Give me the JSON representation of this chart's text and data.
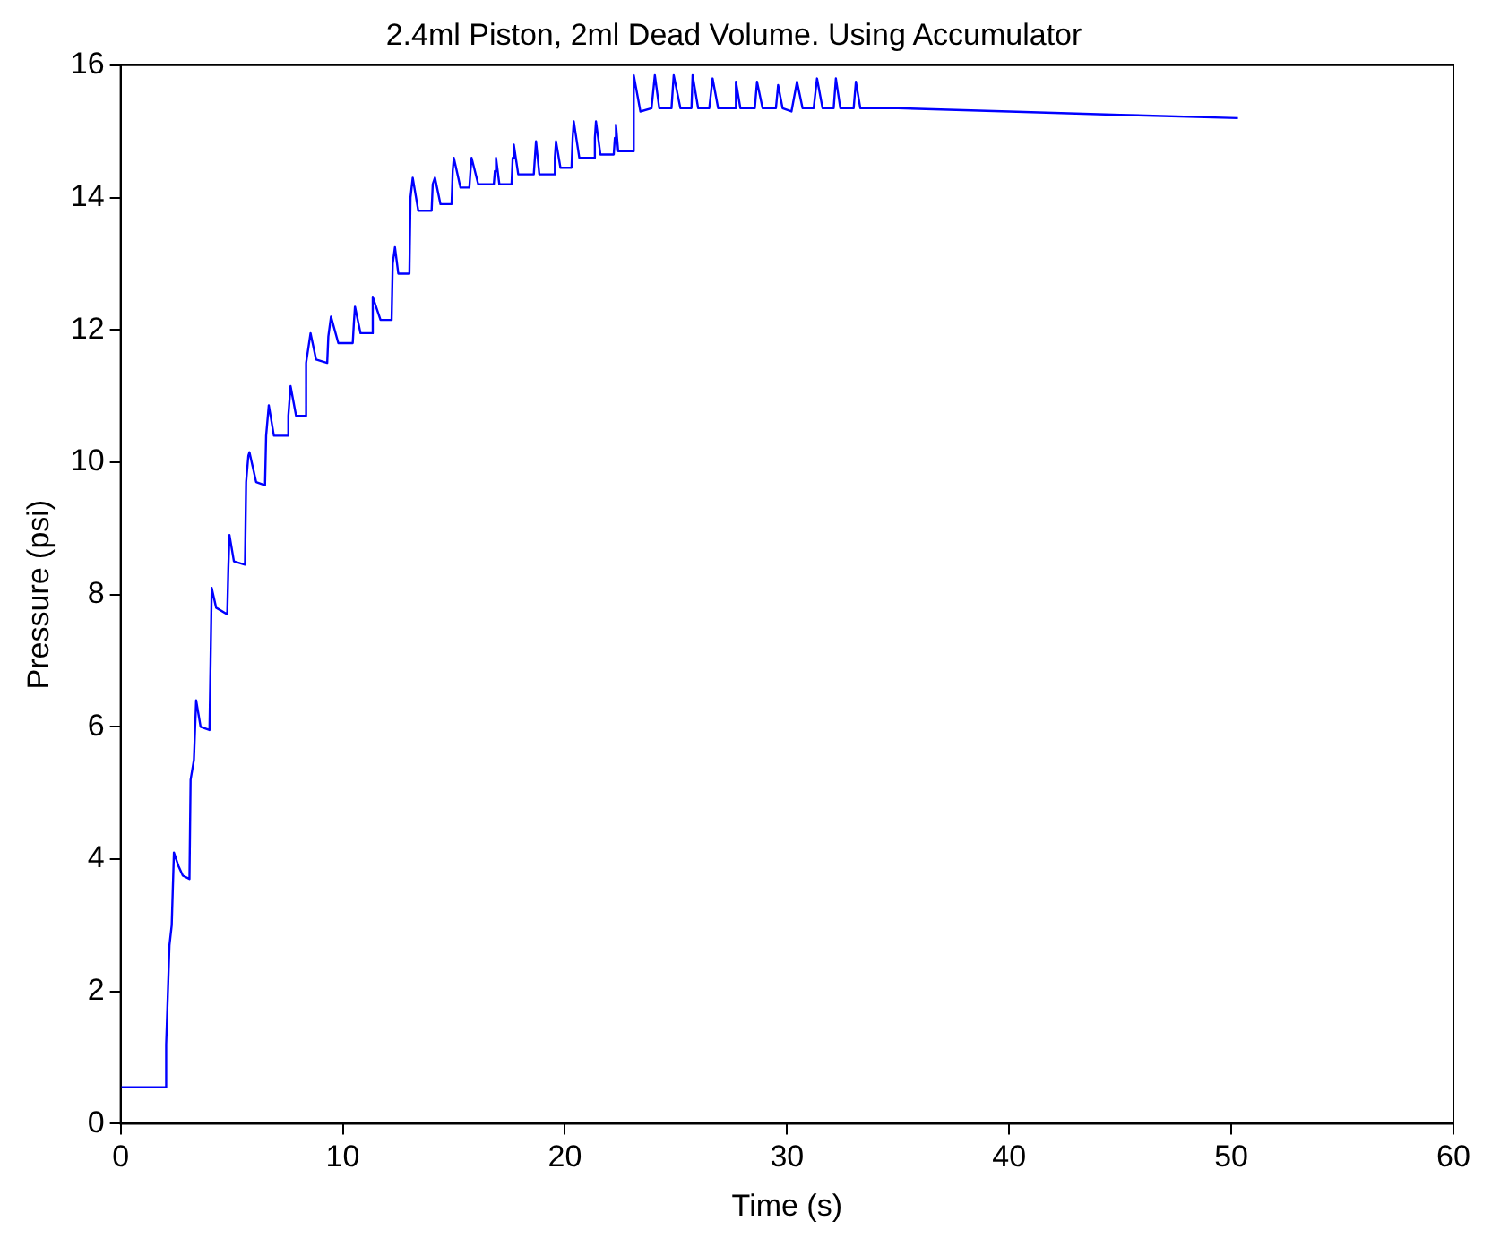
{
  "chart_data": {
    "type": "line",
    "title": "2.4ml Piston, 2ml Dead Volume. Using Accumulator",
    "xlabel": "Time (s)",
    "ylabel": "Pressure (psi)",
    "xlim": [
      0,
      60
    ],
    "xticks": [
      0,
      10,
      20,
      30,
      40,
      50,
      60
    ],
    "ylim": [
      0,
      16
    ],
    "yticks": [
      0,
      2,
      4,
      6,
      8,
      10,
      12,
      14,
      16
    ],
    "grid": false,
    "legend": false,
    "marker": "none",
    "line_style": "solid",
    "series": [
      {
        "color": "#0000ff",
        "x": [
          0,
          2.0,
          2.05,
          2.2,
          2.3,
          2.4,
          2.6,
          2.8,
          3.1,
          3.15,
          3.3,
          3.4,
          3.6,
          4.0,
          4.05,
          4.1,
          4.3,
          4.8,
          4.85,
          4.9,
          5.1,
          5.6,
          5.65,
          5.75,
          5.8,
          6.1,
          6.5,
          6.55,
          6.67,
          6.9,
          7.5,
          7.55,
          7.65,
          7.9,
          8.3,
          8.35,
          8.55,
          8.8,
          9.3,
          9.35,
          9.47,
          9.8,
          10.45,
          10.5,
          10.55,
          10.8,
          11.3,
          11.35,
          11.7,
          12.2,
          12.25,
          12.35,
          12.5,
          13.0,
          13.05,
          13.15,
          13.4,
          14.0,
          14.05,
          14.15,
          14.4,
          14.9,
          14.95,
          15.0,
          15.3,
          15.7,
          15.75,
          15.8,
          16.1,
          16.8,
          16.85,
          16.9,
          17.05,
          17.6,
          17.65,
          17.7,
          17.9,
          18.6,
          18.65,
          18.7,
          18.85,
          19.5,
          19.55,
          19.6,
          19.8,
          20.3,
          20.35,
          20.4,
          20.65,
          21.3,
          21.35,
          21.4,
          21.6,
          22.2,
          22.25,
          22.3,
          22.4,
          23.05,
          23.1,
          23.4,
          23.9,
          24.05,
          24.25,
          24.8,
          24.9,
          25.2,
          25.7,
          25.75,
          26.0,
          26.5,
          26.65,
          26.9,
          27.65,
          27.7,
          27.9,
          28.55,
          28.65,
          28.9,
          29.5,
          29.6,
          29.8,
          30.2,
          30.45,
          30.7,
          31.2,
          31.35,
          31.6,
          32.1,
          32.2,
          32.4,
          33.0,
          33.1,
          33.3,
          35,
          40,
          45,
          50.3
        ],
        "values": [
          0.55,
          0.55,
          1.2,
          2.7,
          3.0,
          4.1,
          3.9,
          3.75,
          3.7,
          5.2,
          5.5,
          6.4,
          6.0,
          5.95,
          7.0,
          8.1,
          7.8,
          7.7,
          8.4,
          8.9,
          8.5,
          8.45,
          9.7,
          10.1,
          10.15,
          9.7,
          9.65,
          10.4,
          10.86,
          10.4,
          10.4,
          10.7,
          11.15,
          10.7,
          10.7,
          11.5,
          11.95,
          11.55,
          11.5,
          11.9,
          12.2,
          11.8,
          11.8,
          12.1,
          12.35,
          11.95,
          11.95,
          12.5,
          12.15,
          12.15,
          13.0,
          13.25,
          12.85,
          12.85,
          14.0,
          14.3,
          13.8,
          13.8,
          14.2,
          14.3,
          13.9,
          13.9,
          14.4,
          14.6,
          14.15,
          14.15,
          14.4,
          14.6,
          14.2,
          14.2,
          14.4,
          14.6,
          14.2,
          14.2,
          14.6,
          14.8,
          14.35,
          14.35,
          14.6,
          14.85,
          14.35,
          14.35,
          14.6,
          14.85,
          14.45,
          14.45,
          14.9,
          15.15,
          14.6,
          14.6,
          14.9,
          15.15,
          14.65,
          14.65,
          14.9,
          15.1,
          14.7,
          14.7,
          15.85,
          15.3,
          15.35,
          15.85,
          15.35,
          15.35,
          15.85,
          15.35,
          15.35,
          15.85,
          15.35,
          15.35,
          15.8,
          15.35,
          15.35,
          15.75,
          15.35,
          15.35,
          15.75,
          15.35,
          15.35,
          15.7,
          15.35,
          15.3,
          15.75,
          15.35,
          15.35,
          15.8,
          15.35,
          15.35,
          15.8,
          15.35,
          15.35,
          15.75,
          15.35,
          15.35,
          15.3,
          15.25,
          15.2
        ]
      }
    ]
  }
}
